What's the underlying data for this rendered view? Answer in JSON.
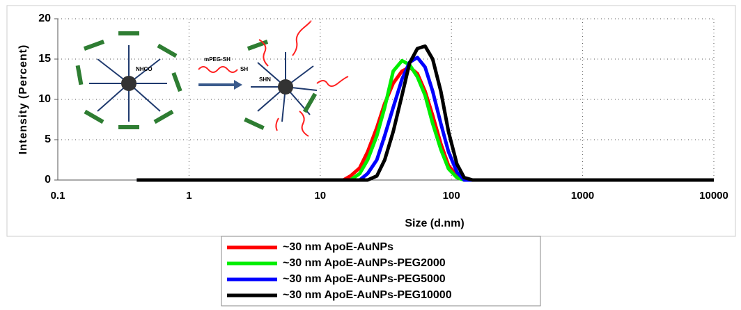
{
  "chart_data": {
    "type": "line",
    "ylabel": "Intensity (Percent)",
    "xlabel": "Size (d.nm)",
    "log_x": true,
    "grid": true,
    "legend": "bottom",
    "xlim": [
      0.1,
      10000
    ],
    "xticks": [
      0.1,
      1,
      10,
      100,
      1000,
      10000
    ],
    "ylim": [
      0,
      20
    ],
    "yticks": [
      0,
      5,
      10,
      15,
      20
    ],
    "inset_labels": [
      "mPEG-SH",
      "SH",
      "NHCO",
      "SHN"
    ],
    "x": [
      0.4,
      15,
      17,
      20,
      23,
      27,
      31,
      36,
      42,
      48,
      55,
      63,
      72,
      83,
      95,
      110,
      125,
      145,
      10000
    ],
    "series": [
      {
        "name": "~30 nm ApoE-AuNPs",
        "color": "#ff0000",
        "values": [
          0,
          0,
          0.5,
          1.5,
          3.5,
          6.5,
          9.5,
          12,
          13.5,
          14,
          13.2,
          11,
          8,
          4.5,
          1.8,
          0.5,
          0,
          0,
          0
        ]
      },
      {
        "name": "~30 nm ApoE-AuNPs-PEG2000",
        "color": "#00ee00",
        "values": [
          0,
          0,
          0,
          0.8,
          2.5,
          5.5,
          9,
          13.5,
          14.8,
          14.3,
          12.8,
          10.5,
          7,
          3.8,
          1.4,
          0.3,
          0,
          0,
          0
        ]
      },
      {
        "name": "~30 nm ApoE-AuNPs-PEG5000",
        "color": "#0000ff",
        "values": [
          0,
          0,
          0,
          0,
          0.8,
          2.5,
          5.5,
          9,
          12.5,
          14.6,
          15.2,
          14,
          11,
          7,
          3.5,
          1,
          0,
          0,
          0
        ]
      },
      {
        "name": "~30 nm ApoE-AuNPs-PEG10000",
        "color": "#000000",
        "values": [
          0,
          0,
          0,
          0,
          0,
          0.5,
          2.5,
          6,
          10.5,
          14.5,
          16.3,
          16.6,
          15,
          11,
          6,
          2,
          0.3,
          0,
          0
        ]
      }
    ]
  }
}
